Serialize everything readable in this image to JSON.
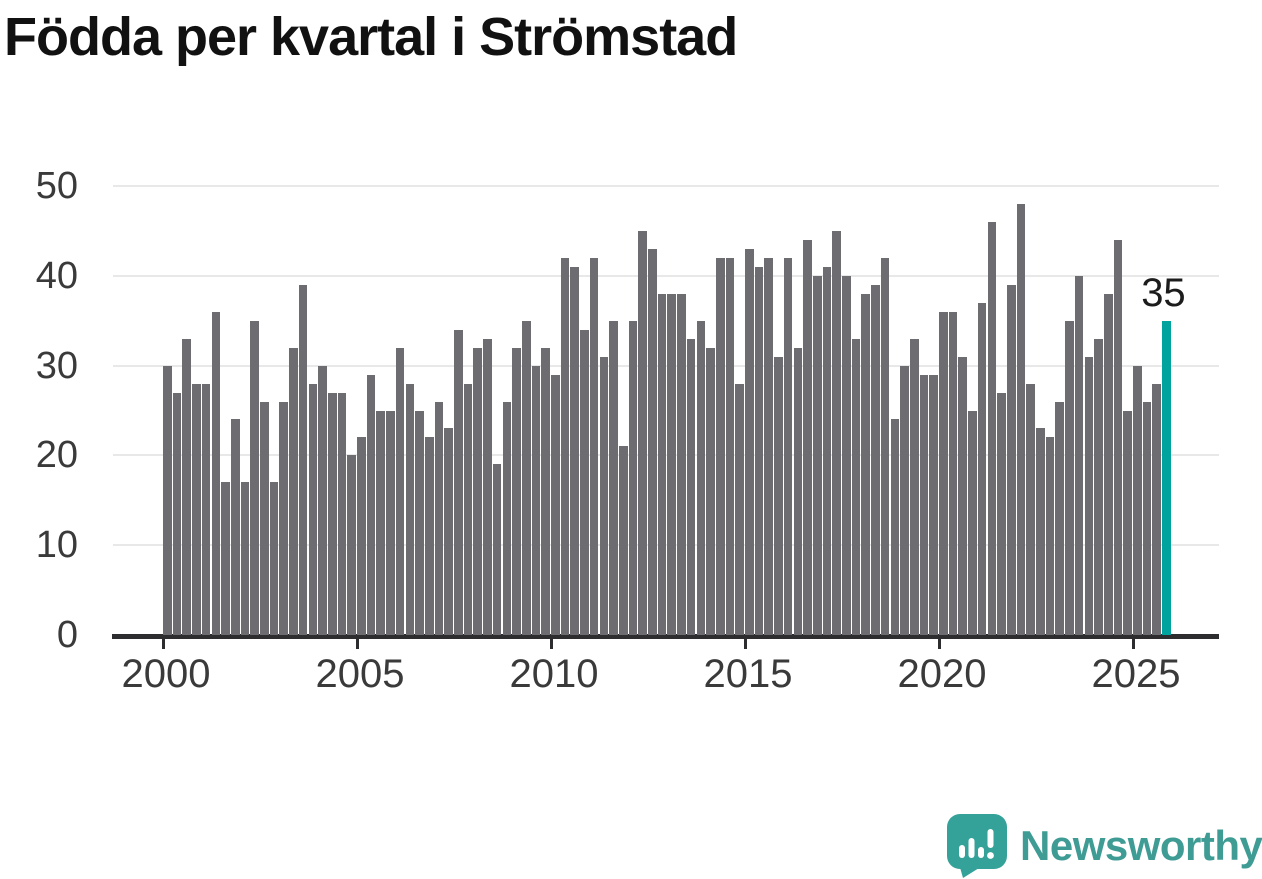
{
  "title": "Födda per kvartal i Strömstad",
  "annotation": {
    "text": "35"
  },
  "logo": {
    "text": "Newsworthy"
  },
  "colors": {
    "bar": "#6c6c71",
    "highlight": "#00a39d",
    "grid": "#e8e8e8",
    "axis": "#2d2d2f",
    "tick_label": "#3a3a3a",
    "title": "#111111",
    "logo_teal": "#3f9c95"
  },
  "chart_data": {
    "type": "bar",
    "title": "Födda per kvartal i Strömstad",
    "frequency": "quarterly",
    "start_quarter": "2000-Q1",
    "end_quarter": "2025-Q4",
    "x_tick_labels": [
      "2000",
      "2005",
      "2010",
      "2015",
      "2020",
      "2025"
    ],
    "y_tick_labels": [
      "0",
      "10",
      "20",
      "30",
      "40",
      "50"
    ],
    "y_ticks": [
      0,
      10,
      20,
      30,
      40,
      50
    ],
    "ylim": [
      0,
      50
    ],
    "grid": "horizontal",
    "legend": "none",
    "highlight_last_bar": true,
    "last_bar_label": "35",
    "series": [
      {
        "name": "Födda",
        "values": [
          30,
          27,
          33,
          28,
          28,
          36,
          17,
          24,
          17,
          35,
          26,
          17,
          26,
          32,
          39,
          28,
          30,
          27,
          27,
          20,
          22,
          29,
          25,
          25,
          32,
          28,
          25,
          22,
          26,
          23,
          34,
          28,
          32,
          33,
          19,
          26,
          32,
          35,
          30,
          32,
          29,
          42,
          41,
          34,
          42,
          31,
          35,
          21,
          35,
          45,
          43,
          38,
          38,
          38,
          33,
          35,
          32,
          42,
          42,
          28,
          43,
          41,
          42,
          31,
          42,
          32,
          44,
          40,
          41,
          45,
          40,
          33,
          38,
          39,
          42,
          24,
          30,
          33,
          29,
          29,
          36,
          36,
          31,
          25,
          37,
          46,
          27,
          39,
          48,
          28,
          23,
          22,
          26,
          35,
          40,
          31,
          33,
          38,
          44,
          25,
          30,
          26,
          28,
          35
        ]
      }
    ]
  }
}
